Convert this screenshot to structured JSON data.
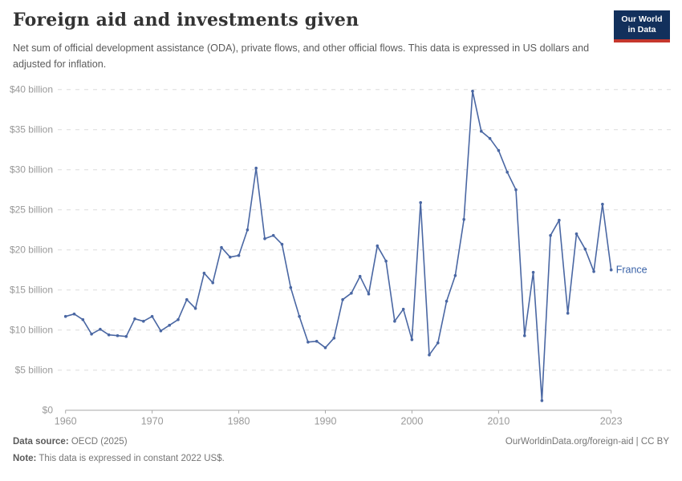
{
  "header": {
    "title": "Foreign aid and investments given",
    "subtitle": "Net sum of official development assistance (ODA), private flows, and other official flows. This data is expressed in US dollars and adjusted for inflation.",
    "logo_line1": "Our World",
    "logo_line2": "in Data"
  },
  "chart_data": {
    "type": "line",
    "title": "Foreign aid and investments given",
    "unit": "US$ billion (constant 2022 US$)",
    "grid": "horizontal dashed",
    "legend_position": "end-of-line label",
    "xlim": [
      1960,
      2023
    ],
    "ylim": [
      0,
      40
    ],
    "x_ticks": [
      1960,
      1970,
      1980,
      1990,
      2000,
      2010,
      2023
    ],
    "y_ticks": [
      {
        "value": 0,
        "label": "$0"
      },
      {
        "value": 5,
        "label": "$5 billion"
      },
      {
        "value": 10,
        "label": "$10 billion"
      },
      {
        "value": 15,
        "label": "$15 billion"
      },
      {
        "value": 20,
        "label": "$20 billion"
      },
      {
        "value": 25,
        "label": "$25 billion"
      },
      {
        "value": 30,
        "label": "$30 billion"
      },
      {
        "value": 35,
        "label": "$35 billion"
      },
      {
        "value": 40,
        "label": "$40 billion"
      }
    ],
    "series": [
      {
        "name": "France",
        "color": "#4a67a3",
        "x": [
          1960,
          1961,
          1962,
          1963,
          1964,
          1965,
          1966,
          1967,
          1968,
          1969,
          1970,
          1971,
          1972,
          1973,
          1974,
          1975,
          1976,
          1977,
          1978,
          1979,
          1980,
          1981,
          1982,
          1983,
          1984,
          1985,
          1986,
          1987,
          1988,
          1989,
          1990,
          1991,
          1992,
          1993,
          1994,
          1995,
          1996,
          1997,
          1998,
          1999,
          2000,
          2001,
          2002,
          2003,
          2004,
          2005,
          2006,
          2007,
          2008,
          2009,
          2010,
          2011,
          2012,
          2013,
          2014,
          2015,
          2016,
          2017,
          2018,
          2019,
          2020,
          2021,
          2022,
          2023
        ],
        "values": [
          11.7,
          12.0,
          11.3,
          9.5,
          10.1,
          9.4,
          9.3,
          9.2,
          11.4,
          11.1,
          11.7,
          9.9,
          10.6,
          11.3,
          13.8,
          12.7,
          17.1,
          15.9,
          20.3,
          19.1,
          19.3,
          22.5,
          30.2,
          21.4,
          21.8,
          20.7,
          15.3,
          11.7,
          8.5,
          8.6,
          7.8,
          9.0,
          13.8,
          14.6,
          16.7,
          14.5,
          20.5,
          18.6,
          11.1,
          12.6,
          8.8,
          25.9,
          6.9,
          8.4,
          13.6,
          16.8,
          23.8,
          39.8,
          34.8,
          33.9,
          32.4,
          29.7,
          27.5,
          9.3,
          17.2,
          1.2,
          21.8,
          23.7,
          12.1,
          22.0,
          20.1,
          17.3,
          25.7,
          17.5
        ]
      }
    ]
  },
  "colors": {
    "line": "#4a67a3",
    "series_label": "#3a63a8",
    "grid": "#dcdcdc",
    "axis": "#a8a8a8",
    "tick_label": "#999999"
  },
  "footer": {
    "source_label": "Data source:",
    "source_value": " OECD (2025)",
    "attribution": "OurWorldinData.org/foreign-aid | CC BY",
    "note_label": "Note:",
    "note_value": " This data is expressed in constant 2022 US$."
  }
}
